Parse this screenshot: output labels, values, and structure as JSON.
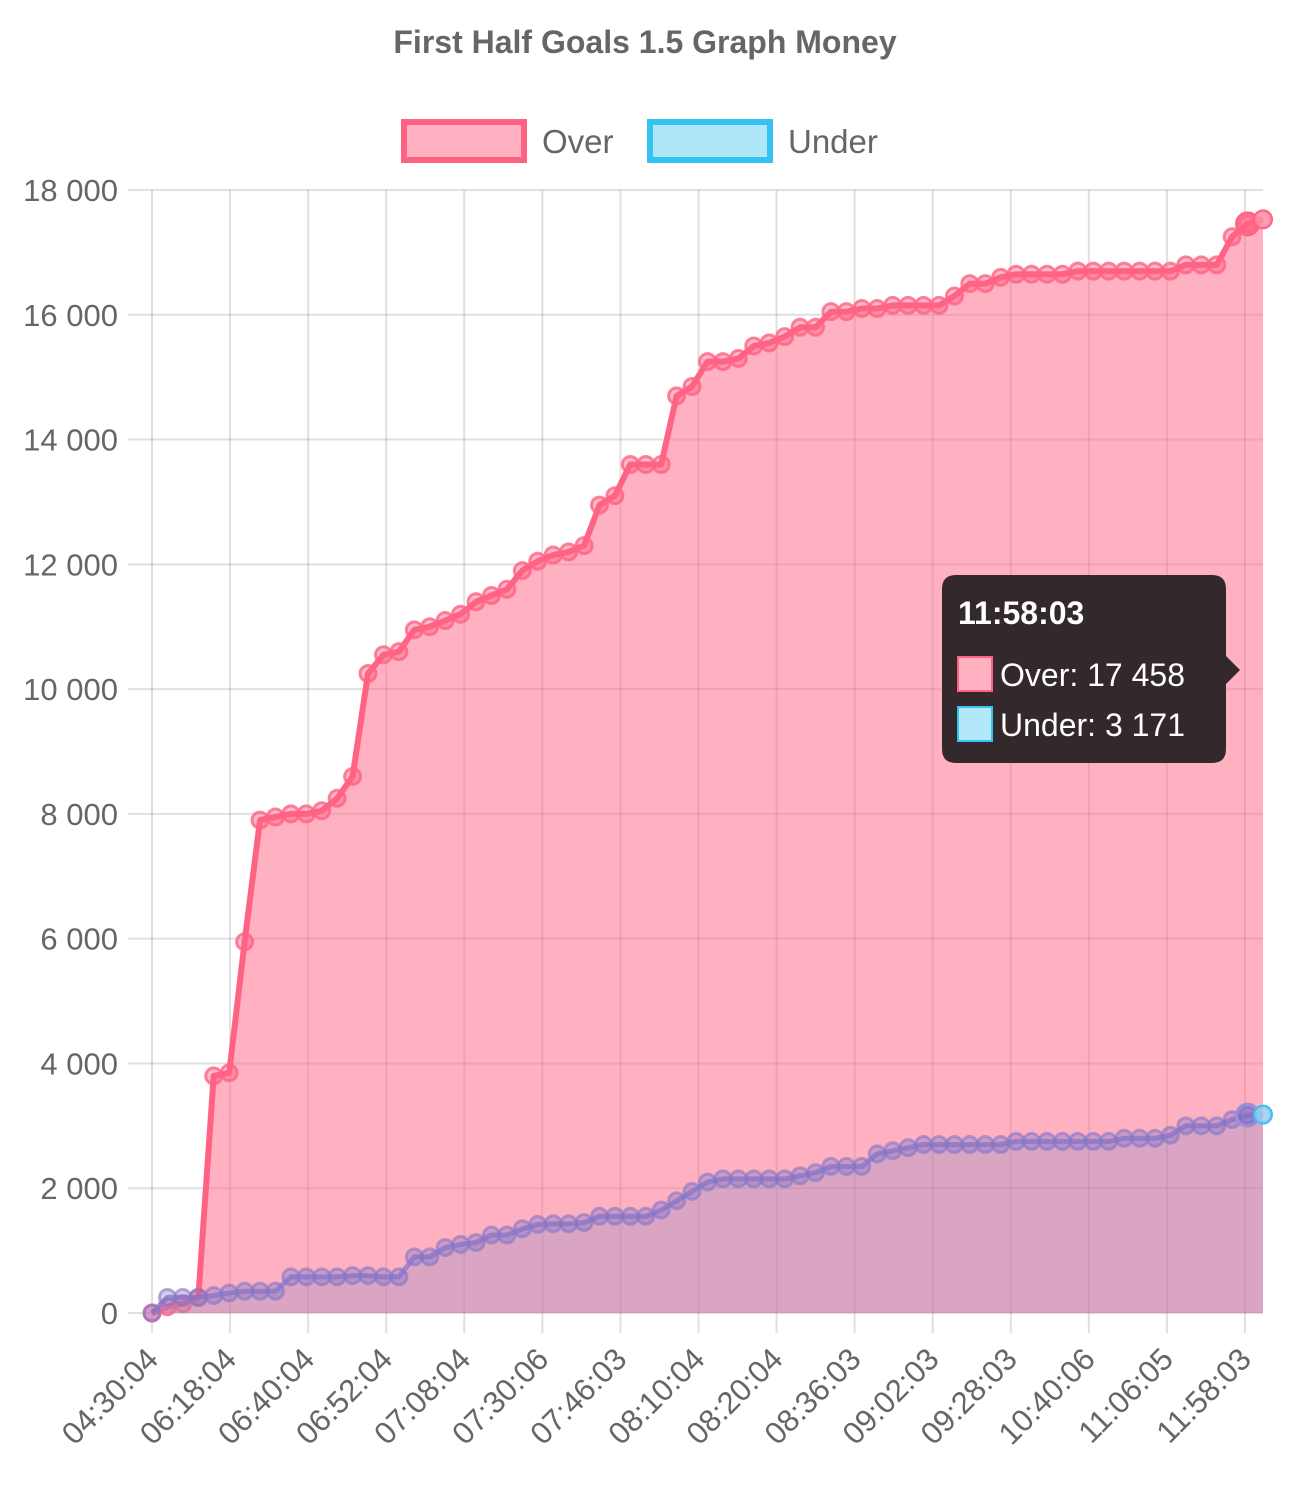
{
  "chart_data": {
    "type": "area",
    "title": "First Half Goals 1.5 Graph Money",
    "xlabel": "",
    "ylabel": "",
    "ylim": [
      0,
      18000
    ],
    "yticks": [
      "0",
      "2 000",
      "4 000",
      "6 000",
      "8 000",
      "10 000",
      "12 000",
      "14 000",
      "16 000",
      "18 000"
    ],
    "ytick_values": [
      0,
      2000,
      4000,
      6000,
      8000,
      10000,
      12000,
      14000,
      16000,
      18000
    ],
    "xtick_labels": [
      "04:30:04",
      "06:18:04",
      "06:40:04",
      "06:52:04",
      "07:08:04",
      "07:30:06",
      "07:46:03",
      "08:10:04",
      "08:20:04",
      "08:36:03",
      "09:02:03",
      "09:28:03",
      "10:40:06",
      "11:06:05",
      "11:58:03"
    ],
    "grid": true,
    "legend_position": "top-center",
    "colors": {
      "over": "#ff6384",
      "under": "#36c2f0",
      "tooltip_bg": "#33282c"
    },
    "series": [
      {
        "name": "Over",
        "color": "#ff6384",
        "values": [
          0,
          100,
          150,
          250,
          3800,
          3850,
          5950,
          7900,
          7950,
          8000,
          8000,
          8050,
          8250,
          8600,
          10250,
          10550,
          10600,
          10950,
          11000,
          11100,
          11200,
          11400,
          11500,
          11600,
          11900,
          12050,
          12150,
          12200,
          12300,
          12950,
          13100,
          13600,
          13600,
          13600,
          14700,
          14850,
          15250,
          15250,
          15300,
          15500,
          15550,
          15650,
          15800,
          15800,
          16050,
          16050,
          16100,
          16100,
          16150,
          16150,
          16150,
          16150,
          16300,
          16500,
          16500,
          16600,
          16650,
          16650,
          16650,
          16650,
          16700,
          16700,
          16700,
          16700,
          16700,
          16700,
          16700,
          16800,
          16800,
          16800,
          17250,
          17458,
          17530
        ]
      },
      {
        "name": "Under",
        "color": "#36c2f0",
        "values": [
          0,
          250,
          250,
          250,
          280,
          320,
          350,
          350,
          350,
          580,
          580,
          580,
          580,
          600,
          600,
          580,
          580,
          900,
          900,
          1050,
          1100,
          1130,
          1250,
          1250,
          1350,
          1420,
          1430,
          1430,
          1450,
          1550,
          1550,
          1550,
          1550,
          1650,
          1800,
          1950,
          2100,
          2150,
          2150,
          2150,
          2150,
          2150,
          2200,
          2250,
          2350,
          2350,
          2350,
          2550,
          2600,
          2650,
          2700,
          2700,
          2700,
          2700,
          2700,
          2700,
          2750,
          2750,
          2750,
          2750,
          2750,
          2750,
          2750,
          2800,
          2800,
          2800,
          2850,
          3000,
          3000,
          3000,
          3100,
          3171,
          3180
        ]
      }
    ],
    "tooltip": {
      "title": "11:58:03",
      "lines": [
        {
          "series": "Over",
          "text": "Over: 17 458"
        },
        {
          "series": "Under",
          "text": "Under: 3 171"
        }
      ],
      "point_index": 71
    }
  }
}
